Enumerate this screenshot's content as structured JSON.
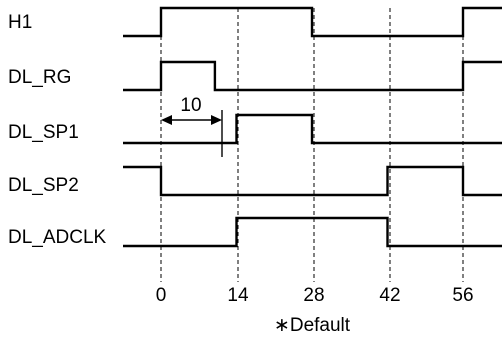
{
  "signals": [
    {
      "name": "H1",
      "initial": 0,
      "transitions": [
        0,
        28,
        56
      ]
    },
    {
      "name": "DL_RG",
      "initial": 0,
      "transitions": [
        0,
        10,
        56
      ]
    },
    {
      "name": "DL_SP1",
      "initial": 0,
      "transitions": [
        14,
        28
      ]
    },
    {
      "name": "DL_SP2",
      "initial": 1,
      "transitions": [
        0,
        42,
        56
      ]
    },
    {
      "name": "DL_ADCLK",
      "initial": 0,
      "transitions": [
        14,
        42
      ]
    }
  ],
  "axis_ticks": [
    "0",
    "14",
    "28",
    "42",
    "56"
  ],
  "dimension": {
    "label": "10",
    "from": 0,
    "to": 10
  },
  "note": "∗Default"
}
